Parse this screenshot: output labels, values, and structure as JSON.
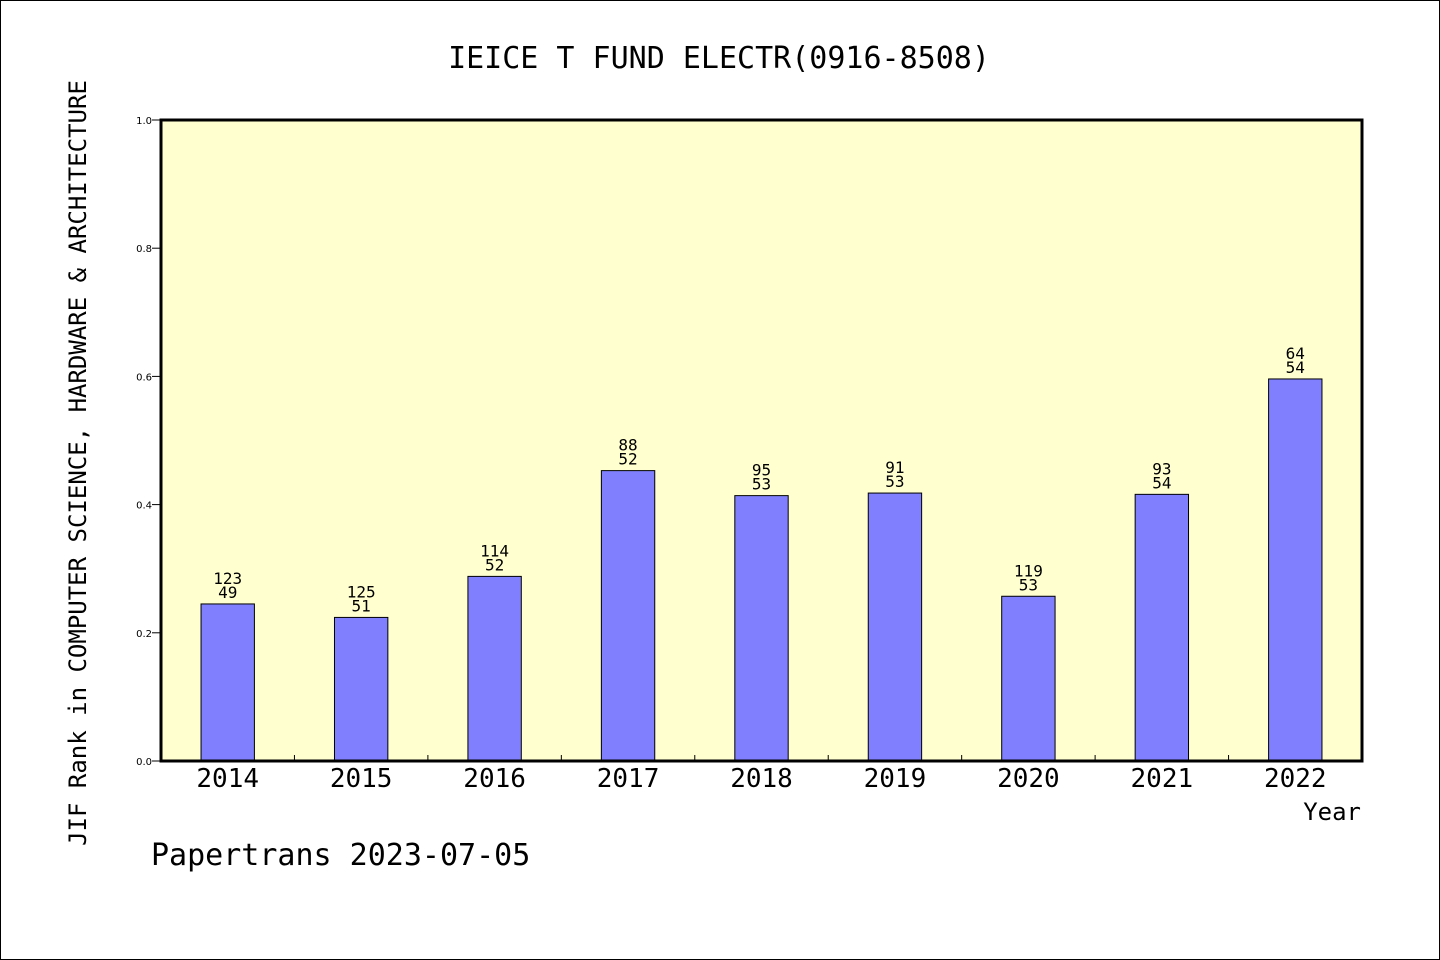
{
  "chart_data": {
    "type": "bar",
    "title": "IEICE T FUND ELECTR(0916-8508)",
    "xlabel": "Year",
    "ylabel": "JIF Rank in COMPUTER SCIENCE, HARDWARE & ARCHITECTURE",
    "ylim": [
      0,
      1.0
    ],
    "yticks": [
      "0.0",
      "0.2",
      "0.4",
      "0.6",
      "0.8",
      "1.0"
    ],
    "categories": [
      "2014",
      "2015",
      "2016",
      "2017",
      "2018",
      "2019",
      "2020",
      "2021",
      "2022"
    ],
    "values": [
      0.245,
      0.224,
      0.288,
      0.453,
      0.414,
      0.418,
      0.257,
      0.416,
      0.596
    ],
    "rank_labels": [
      "123",
      "125",
      "114",
      "88",
      "95",
      "91",
      "119",
      "93",
      "64"
    ],
    "total_labels": [
      "49",
      "51",
      "52",
      "52",
      "53",
      "53",
      "53",
      "54",
      "54"
    ],
    "grid": false,
    "legend": "none",
    "colors": {
      "plot_background": "#ffffd0",
      "bar_fill": "#8080ff",
      "bar_stroke": "#000000",
      "frame": "#000000"
    }
  },
  "footer": "Papertrans 2023-07-05"
}
